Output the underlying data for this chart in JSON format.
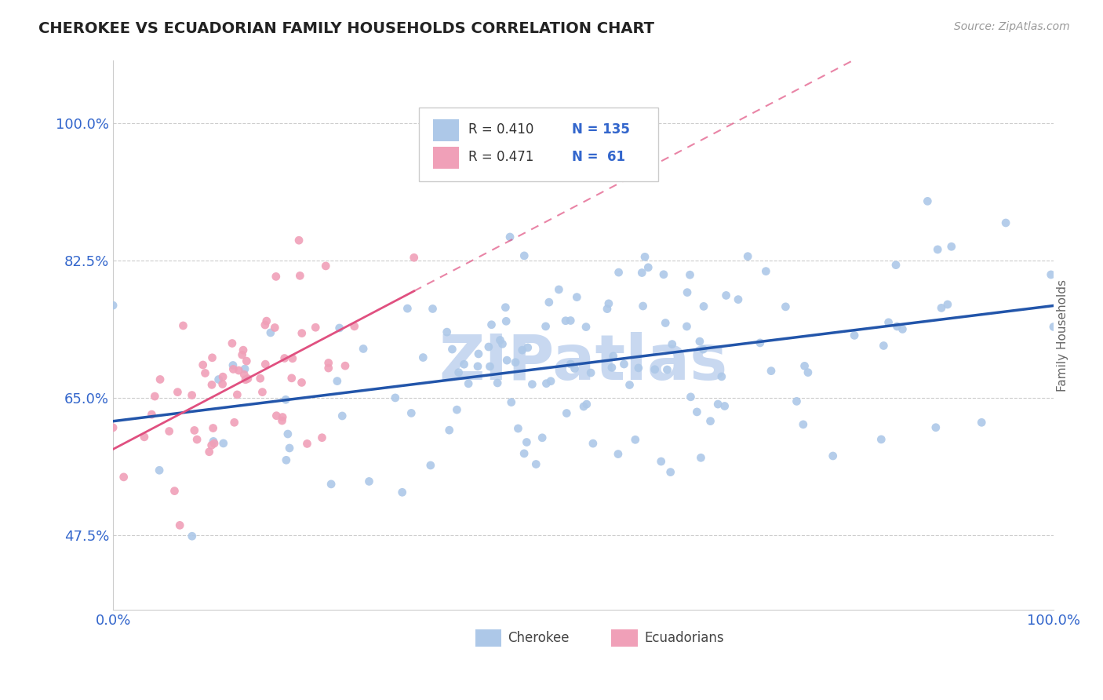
{
  "title": "CHEROKEE VS ECUADORIAN FAMILY HOUSEHOLDS CORRELATION CHART",
  "source": "Source: ZipAtlas.com",
  "ylabel": "Family Households",
  "y_tick_labels": [
    "47.5%",
    "65.0%",
    "82.5%",
    "100.0%"
  ],
  "y_tick_values": [
    0.475,
    0.65,
    0.825,
    1.0
  ],
  "xlim": [
    0.0,
    1.0
  ],
  "ylim": [
    0.38,
    1.08
  ],
  "cherokee_R": 0.41,
  "cherokee_N": 135,
  "ecuadorian_R": 0.471,
  "ecuadorian_N": 61,
  "cherokee_color": "#adc8e8",
  "cherokee_line_color": "#2255aa",
  "ecuadorian_color": "#f0a0b8",
  "ecuadorian_line_color": "#e05080",
  "watermark_color": "#c8d8f0",
  "background_color": "#ffffff",
  "grid_color": "#cccccc",
  "title_color": "#222222",
  "axis_label_color": "#3366cc",
  "legend_border_color": "#dddddd"
}
